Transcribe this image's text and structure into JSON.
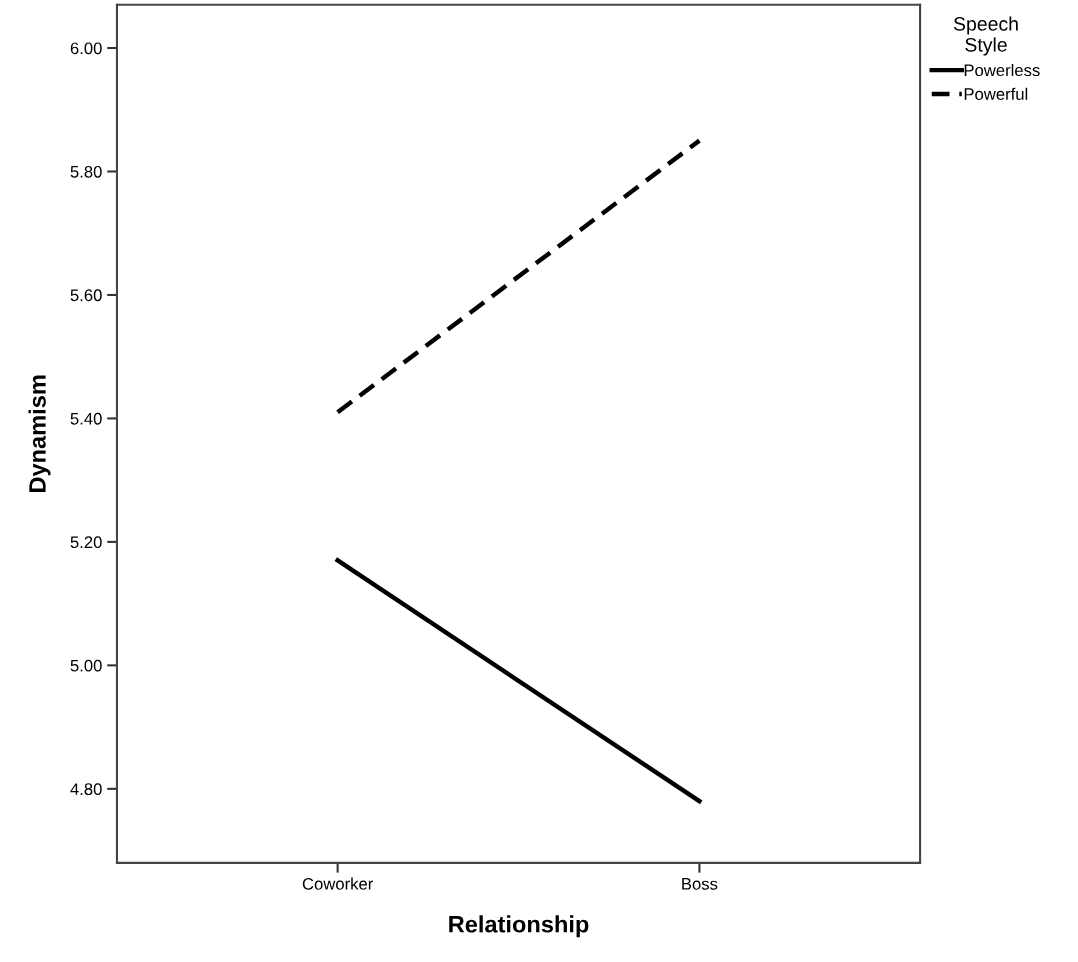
{
  "chart_data": {
    "type": "line",
    "xlabel": "Relationship",
    "ylabel": "Dynamism",
    "legend_title": "Speech\nStyle",
    "categories": [
      "Coworker",
      "Boss"
    ],
    "series": [
      {
        "name": "Powerless",
        "color": "#000000",
        "values": [
          5.17,
          4.78
        ],
        "line_style": "solid"
      },
      {
        "name": "Powerful",
        "color": "#000000",
        "values": [
          5.41,
          5.85
        ],
        "line_style": "dashed"
      }
    ],
    "ylim": [
      4.68,
      6.07
    ],
    "yticks": [
      {
        "value": 4.8,
        "label": "4.80"
      },
      {
        "value": 5.0,
        "label": "5.00"
      },
      {
        "value": 5.2,
        "label": "5.20"
      },
      {
        "value": 5.4,
        "label": "5.40"
      },
      {
        "value": 5.6,
        "label": "5.60"
      },
      {
        "value": 5.8,
        "label": "5.80"
      },
      {
        "value": 6.0,
        "label": "6.00"
      }
    ],
    "grid": false,
    "legend": "top right",
    "marker": "none"
  }
}
